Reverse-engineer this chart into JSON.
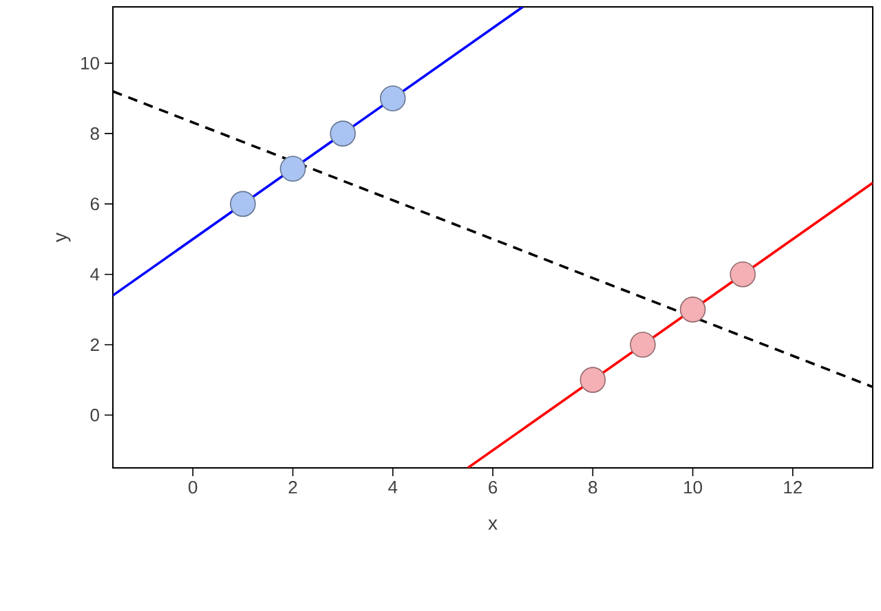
{
  "chart_data": {
    "type": "scatter",
    "xlabel": "x",
    "ylabel": "y",
    "xlim": [
      -1.6,
      13.6
    ],
    "ylim": [
      -1.5,
      11.6
    ],
    "xticks": [
      0,
      2,
      4,
      6,
      8,
      10,
      12
    ],
    "yticks": [
      0,
      2,
      4,
      6,
      8,
      10
    ],
    "grid": false,
    "series": [
      {
        "type": "line",
        "color": "#0000ff",
        "x": [
          -1.6,
          6.6
        ],
        "values": [
          3.4,
          11.6
        ],
        "line_style": "solid",
        "marker": "none"
      },
      {
        "type": "line",
        "color": "#ff0000",
        "x": [
          5.5,
          13.6
        ],
        "values": [
          -1.5,
          6.6
        ],
        "line_style": "solid",
        "marker": "none"
      },
      {
        "type": "line",
        "color": "#000000",
        "x": [
          -1.6,
          13.6
        ],
        "values": [
          9.2,
          0.8
        ],
        "line_style": "dashed",
        "marker": "none"
      },
      {
        "color": "#a9c3f2",
        "marker": "circle",
        "x": [
          1,
          2,
          3,
          4
        ],
        "values": [
          6,
          7,
          8,
          9
        ]
      },
      {
        "color": "#f5b0b5",
        "marker": "circle",
        "x": [
          8,
          9,
          10,
          11
        ],
        "values": [
          1,
          2,
          3,
          4
        ]
      }
    ]
  }
}
